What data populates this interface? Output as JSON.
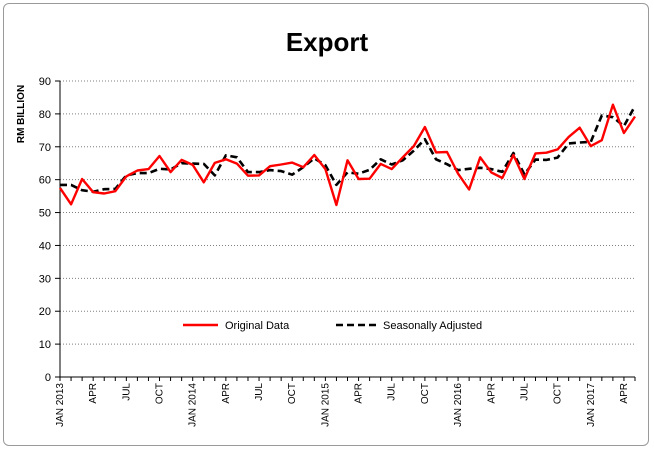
{
  "chart_data": {
    "type": "line",
    "title": "Export",
    "ylabel": "RM BILLION",
    "xlabel": "",
    "ylim": [
      0,
      90
    ],
    "yticks": [
      0,
      10,
      20,
      30,
      40,
      50,
      60,
      70,
      80,
      90
    ],
    "grid": "horizontal dotted",
    "legend_position": "bottom-center",
    "x": [
      "Jan 2013",
      "Feb 2013",
      "Mar 2013",
      "Apr 2013",
      "May 2013",
      "Jun 2013",
      "Jul 2013",
      "Aug 2013",
      "Sep 2013",
      "Oct 2013",
      "Nov 2013",
      "Dec 2013",
      "Jan 2014",
      "Feb 2014",
      "Mar 2014",
      "Apr 2014",
      "May 2014",
      "Jun 2014",
      "Jul 2014",
      "Aug 2014",
      "Sep 2014",
      "Oct 2014",
      "Nov 2014",
      "Dec 2014",
      "Jan 2015",
      "Feb 2015",
      "Mar 2015",
      "Apr 2015",
      "May 2015",
      "Jun 2015",
      "Jul 2015",
      "Aug 2015",
      "Sep 2015",
      "Oct 2015",
      "Nov 2015",
      "Dec 2015",
      "Jan 2016",
      "Feb 2016",
      "Mar 2016",
      "Apr 2016",
      "May 2016",
      "Jun 2016",
      "Jul 2016",
      "Aug 2016",
      "Sep 2016",
      "Oct 2016",
      "Nov 2016",
      "Dec 2016",
      "Jan 2017",
      "Feb 2017",
      "Mar 2017",
      "Apr 2017",
      "May 2017"
    ],
    "tick_labels": [
      {
        "index": 0,
        "label": "JAN 2013"
      },
      {
        "index": 3,
        "label": "APR"
      },
      {
        "index": 6,
        "label": "JUL"
      },
      {
        "index": 9,
        "label": "OCT"
      },
      {
        "index": 12,
        "label": "JAN 2014"
      },
      {
        "index": 15,
        "label": "APR"
      },
      {
        "index": 18,
        "label": "JUL"
      },
      {
        "index": 21,
        "label": "OCT"
      },
      {
        "index": 24,
        "label": "JAN 2015"
      },
      {
        "index": 27,
        "label": "APR"
      },
      {
        "index": 30,
        "label": "JUL"
      },
      {
        "index": 33,
        "label": "OCT"
      },
      {
        "index": 36,
        "label": "JAN 2016"
      },
      {
        "index": 39,
        "label": "APR"
      },
      {
        "index": 42,
        "label": "JUL"
      },
      {
        "index": 45,
        "label": "OCT"
      },
      {
        "index": 48,
        "label": "JAN 2017"
      },
      {
        "index": 51,
        "label": "APR"
      }
    ],
    "series": [
      {
        "name": "Original Data",
        "color": "#ff0000",
        "style": "solid",
        "values": [
          57.5,
          52.5,
          60.2,
          56.2,
          55.8,
          56.5,
          61.0,
          62.8,
          63.2,
          67.2,
          62.3,
          66.0,
          64.5,
          59.2,
          65.1,
          66.2,
          64.9,
          61.2,
          61.3,
          64.1,
          64.6,
          65.2,
          63.8,
          67.5,
          63.2,
          52.3,
          65.9,
          60.2,
          60.3,
          64.8,
          63.2,
          66.8,
          70.2,
          76.0,
          68.3,
          68.4,
          61.8,
          57.0,
          66.8,
          62.2,
          60.5,
          67.5,
          60.2,
          68.0,
          68.2,
          69.2,
          73.0,
          75.8,
          70.2,
          72.0,
          82.8,
          74.2,
          79.2
        ]
      },
      {
        "name": "Seasonally Adjusted",
        "color": "#000000",
        "style": "dashed",
        "values": [
          58.4,
          58.4,
          56.8,
          56.3,
          57.1,
          57.2,
          61.3,
          62.0,
          62.0,
          63.3,
          63.1,
          65.0,
          64.9,
          64.8,
          61.3,
          67.4,
          66.8,
          62.3,
          62.3,
          62.9,
          62.6,
          61.5,
          63.8,
          66.5,
          64.4,
          58.4,
          62.2,
          61.8,
          63.0,
          66.2,
          64.6,
          65.9,
          68.8,
          72.3,
          66.2,
          64.7,
          62.9,
          63.3,
          63.6,
          63.2,
          62.4,
          68.1,
          61.6,
          66.1,
          66.0,
          66.7,
          71.0,
          71.3,
          71.5,
          79.5,
          79.0,
          76.3,
          82.4
        ]
      }
    ]
  }
}
